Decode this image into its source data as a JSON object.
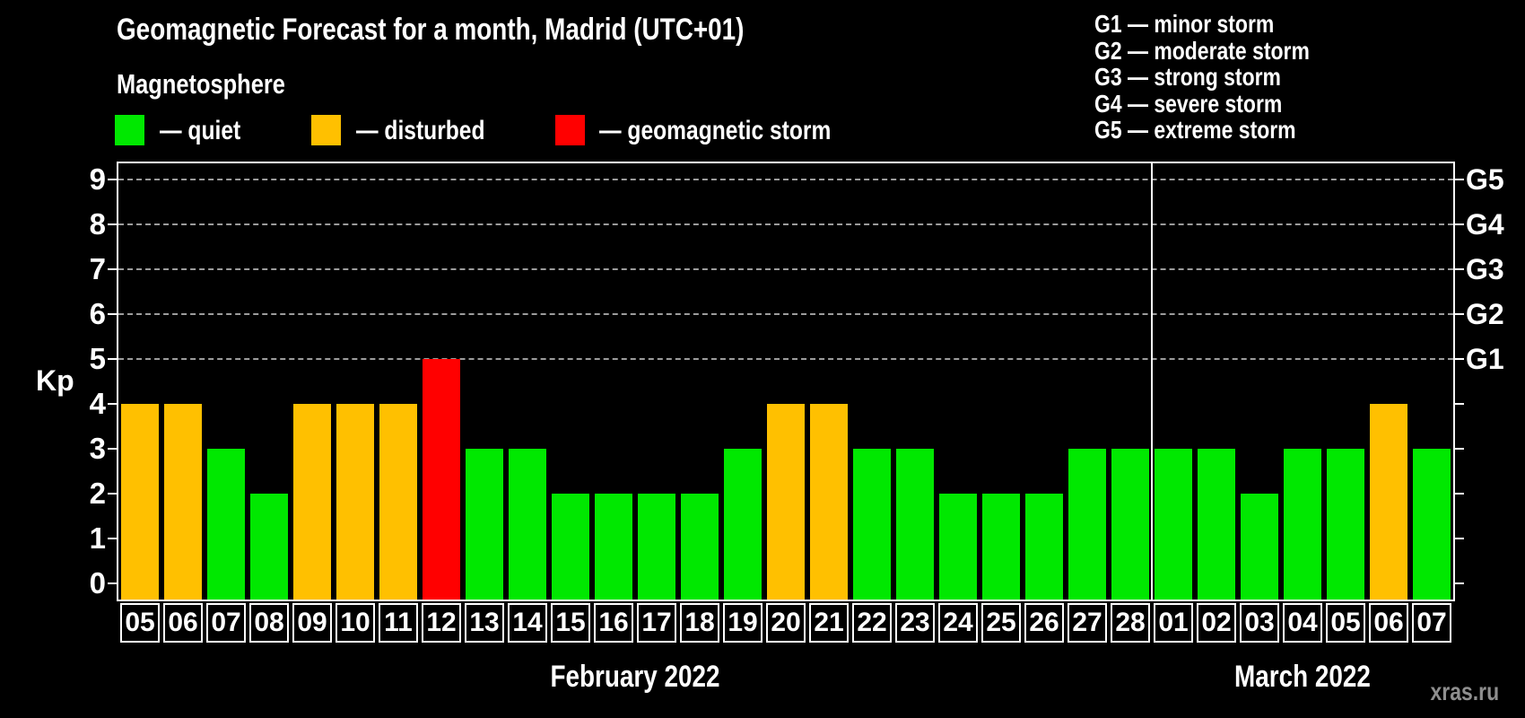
{
  "header": {
    "title": "Geomagnetic Forecast for a month, Madrid (UTC+01)"
  },
  "magnetosphere_legend": {
    "title": "Magnetosphere",
    "items": [
      {
        "key": "quiet",
        "label": "— quiet",
        "color": "#00e800"
      },
      {
        "key": "disturbed",
        "label": "— disturbed",
        "color": "#ffc000"
      },
      {
        "key": "storm",
        "label": "— geomagnetic storm",
        "color": "#ff0000"
      }
    ]
  },
  "storm_scale_legend": {
    "items": [
      "G1 — minor storm",
      "G2 — moderate storm",
      "G3 — strong storm",
      "G4 — severe storm",
      "G5 — extreme storm"
    ]
  },
  "chart_data": {
    "type": "bar",
    "title": "Geomagnetic Forecast for a month, Madrid (UTC+01)",
    "ylabel": "Kp",
    "ylim": [
      0,
      9.7
    ],
    "yticks": [
      0,
      1,
      2,
      3,
      4,
      5,
      6,
      7,
      8,
      9
    ],
    "grid_kp_levels": [
      5,
      6,
      7,
      8,
      9
    ],
    "right_axis": [
      {
        "kp": 5,
        "label": "G1"
      },
      {
        "kp": 6,
        "label": "G2"
      },
      {
        "kp": 7,
        "label": "G3"
      },
      {
        "kp": 8,
        "label": "G4"
      },
      {
        "kp": 9,
        "label": "G5"
      }
    ],
    "status_colors": {
      "quiet": "#00e800",
      "disturbed": "#ffc000",
      "storm": "#ff0000"
    },
    "months": [
      {
        "label": "February 2022",
        "count": 24
      },
      {
        "label": "March 2022",
        "count": 7
      }
    ],
    "days": [
      {
        "day": "05",
        "kp": 4,
        "status": "disturbed"
      },
      {
        "day": "06",
        "kp": 4,
        "status": "disturbed"
      },
      {
        "day": "07",
        "kp": 3,
        "status": "quiet"
      },
      {
        "day": "08",
        "kp": 2,
        "status": "quiet"
      },
      {
        "day": "09",
        "kp": 4,
        "status": "disturbed"
      },
      {
        "day": "10",
        "kp": 4,
        "status": "disturbed"
      },
      {
        "day": "11",
        "kp": 4,
        "status": "disturbed"
      },
      {
        "day": "12",
        "kp": 5,
        "status": "storm"
      },
      {
        "day": "13",
        "kp": 3,
        "status": "quiet"
      },
      {
        "day": "14",
        "kp": 3,
        "status": "quiet"
      },
      {
        "day": "15",
        "kp": 2,
        "status": "quiet"
      },
      {
        "day": "16",
        "kp": 2,
        "status": "quiet"
      },
      {
        "day": "17",
        "kp": 2,
        "status": "quiet"
      },
      {
        "day": "18",
        "kp": 2,
        "status": "quiet"
      },
      {
        "day": "19",
        "kp": 3,
        "status": "quiet"
      },
      {
        "day": "20",
        "kp": 4,
        "status": "disturbed"
      },
      {
        "day": "21",
        "kp": 4,
        "status": "disturbed"
      },
      {
        "day": "22",
        "kp": 3,
        "status": "quiet"
      },
      {
        "day": "23",
        "kp": 3,
        "status": "quiet"
      },
      {
        "day": "24",
        "kp": 2,
        "status": "quiet"
      },
      {
        "day": "25",
        "kp": 2,
        "status": "quiet"
      },
      {
        "day": "26",
        "kp": 2,
        "status": "quiet"
      },
      {
        "day": "27",
        "kp": 3,
        "status": "quiet"
      },
      {
        "day": "28",
        "kp": 3,
        "status": "quiet"
      },
      {
        "day": "01",
        "kp": 3,
        "status": "quiet"
      },
      {
        "day": "02",
        "kp": 3,
        "status": "quiet"
      },
      {
        "day": "03",
        "kp": 2,
        "status": "quiet"
      },
      {
        "day": "04",
        "kp": 3,
        "status": "quiet"
      },
      {
        "day": "05",
        "kp": 3,
        "status": "quiet"
      },
      {
        "day": "06",
        "kp": 4,
        "status": "disturbed"
      },
      {
        "day": "07",
        "kp": 3,
        "status": "quiet"
      }
    ]
  },
  "watermark": "xras.ru"
}
